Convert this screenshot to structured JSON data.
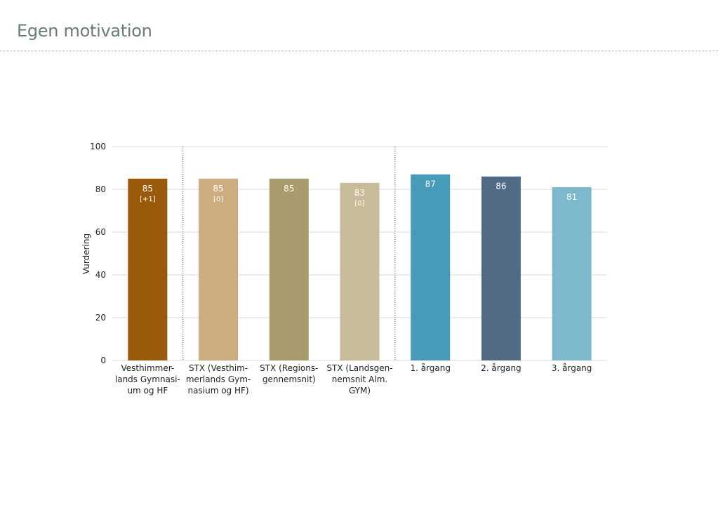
{
  "page": {
    "title": "Egen motivation"
  },
  "chart_data": {
    "type": "bar",
    "ylabel": "Vurdering",
    "xlabel": "",
    "ylim": [
      0,
      100
    ],
    "yticks": [
      0,
      20,
      40,
      60,
      80,
      100
    ],
    "grid": true,
    "group_separators_after": [
      0,
      3
    ],
    "categories": [
      [
        "Vesthimmer-",
        "lands Gymnasi-",
        "um og HF"
      ],
      [
        "STX (Vesthim-",
        "merlands Gym-",
        "nasium og HF)"
      ],
      [
        "STX (Regions-",
        "gennemsnit)"
      ],
      [
        "STX (Landsgen-",
        "nemsnit Alm.",
        "GYM)"
      ],
      [
        "1. årgang"
      ],
      [
        "2. årgang"
      ],
      [
        "3. årgang"
      ]
    ],
    "values": [
      85,
      85,
      85,
      83,
      87,
      86,
      81
    ],
    "value_labels": [
      "85",
      "85",
      "85",
      "83",
      "87",
      "86",
      "81"
    ],
    "deltas": [
      "[+1]",
      "[0]",
      "",
      "[0]",
      "",
      "",
      ""
    ],
    "colors": [
      "#9a5a0a",
      "#cdac82",
      "#a89c6c",
      "#c7bb99",
      "#469bb8",
      "#516b87",
      "#7db8cc"
    ]
  }
}
